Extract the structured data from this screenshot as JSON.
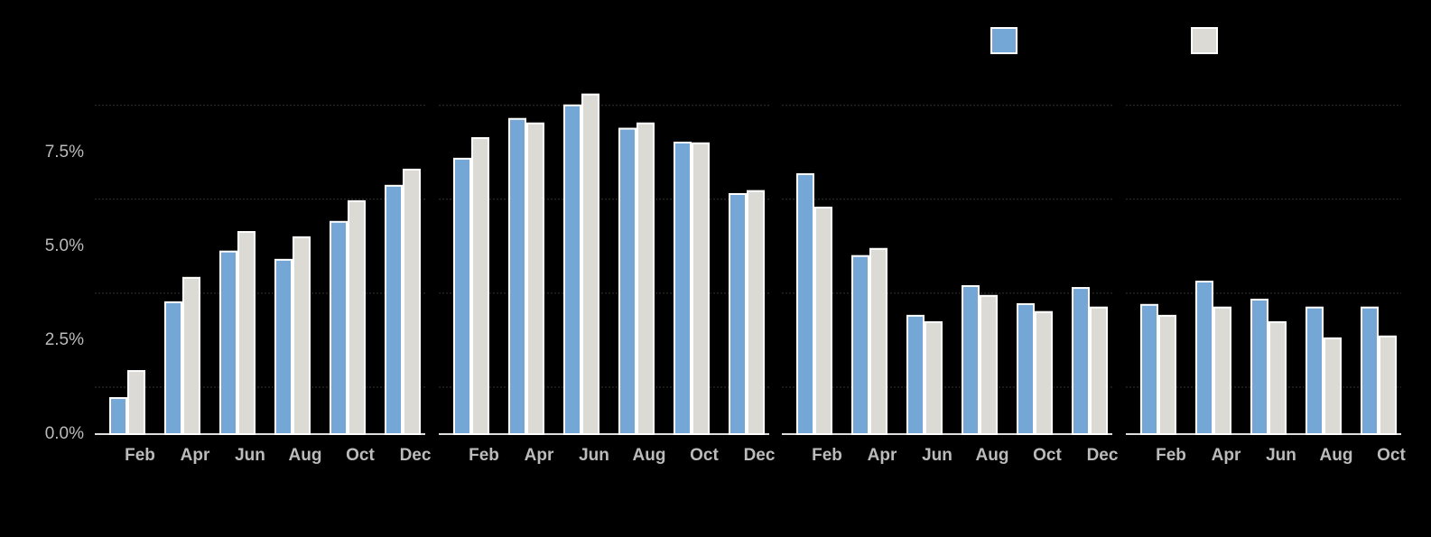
{
  "chart_data": [
    {
      "type": "bar",
      "categories": [
        "Feb",
        "Apr",
        "Jun",
        "Aug",
        "Oct",
        "Dec"
      ],
      "series": [
        {
          "color": "#74a7d6",
          "values": [
            0.96,
            3.51,
            4.86,
            4.64,
            5.65,
            6.61
          ]
        },
        {
          "color": "#dcdad4",
          "values": [
            1.68,
            4.16,
            5.38,
            5.24,
            6.2,
            7.04
          ]
        }
      ],
      "ylim": [
        0,
        9.2
      ],
      "yticks": [
        {
          "value": 0,
          "label": "0.0%"
        },
        {
          "value": 2.5,
          "label": "2.5%"
        },
        {
          "value": 5,
          "label": "5.0%"
        },
        {
          "value": 7.5,
          "label": "7.5%"
        }
      ],
      "ygrid": [
        1.25,
        3.75,
        6.25,
        8.75
      ]
    },
    {
      "type": "bar",
      "categories": [
        "Feb",
        "Apr",
        "Jun",
        "Aug",
        "Oct",
        "Dec"
      ],
      "series": [
        {
          "color": "#74a7d6",
          "values": [
            7.33,
            8.39,
            8.75,
            8.13,
            7.76,
            6.39
          ]
        },
        {
          "color": "#dcdad4",
          "values": [
            7.88,
            8.27,
            9.04,
            8.27,
            7.74,
            6.47
          ]
        }
      ],
      "ylim": [
        0,
        9.2
      ],
      "ygrid": [
        1.25,
        3.75,
        6.25,
        8.75
      ]
    },
    {
      "type": "bar",
      "categories": [
        "Feb",
        "Apr",
        "Jun",
        "Aug",
        "Oct",
        "Dec"
      ],
      "series": [
        {
          "color": "#74a7d6",
          "values": [
            6.92,
            4.74,
            3.15,
            3.94,
            3.46,
            3.89
          ]
        },
        {
          "color": "#dcdad4",
          "values": [
            6.03,
            4.93,
            2.98,
            3.68,
            3.25,
            3.37
          ]
        }
      ],
      "ylim": [
        0,
        9.2
      ],
      "ygrid": [
        1.25,
        3.75,
        6.25,
        8.75
      ]
    },
    {
      "type": "bar",
      "categories": [
        "Feb",
        "Apr",
        "Jun",
        "Aug",
        "Oct"
      ],
      "series": [
        {
          "color": "#74a7d6",
          "values": [
            3.44,
            4.06,
            3.58,
            3.37,
            3.37
          ]
        },
        {
          "color": "#dcdad4",
          "values": [
            3.15,
            3.37,
            2.98,
            2.55,
            2.6
          ]
        }
      ],
      "ylim": [
        0,
        9.2
      ],
      "ygrid": [
        1.25,
        3.75,
        6.25,
        8.75
      ]
    }
  ]
}
